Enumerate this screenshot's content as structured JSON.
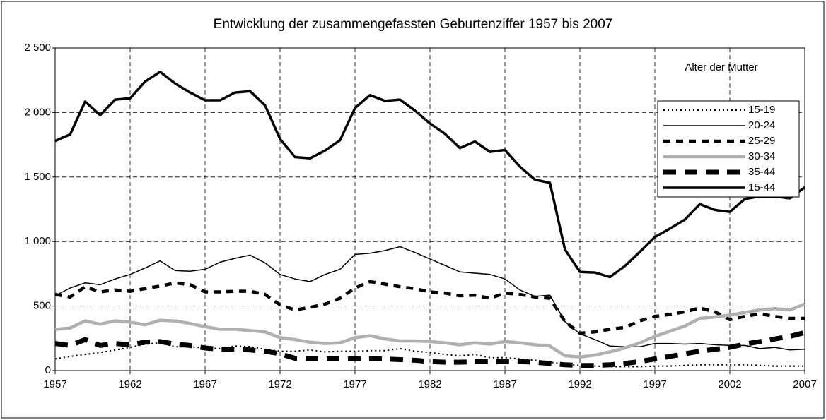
{
  "chart_data": {
    "type": "line",
    "title": "Entwicklung der zusammengefassten Geburtenziffer 1957 bis 2007",
    "legend_title": "Alter der Mutter",
    "legend": "right",
    "grid": true,
    "x": [
      1957,
      1958,
      1959,
      1960,
      1961,
      1962,
      1963,
      1964,
      1965,
      1966,
      1967,
      1968,
      1969,
      1970,
      1971,
      1972,
      1973,
      1974,
      1975,
      1976,
      1977,
      1978,
      1979,
      1980,
      1981,
      1982,
      1983,
      1984,
      1985,
      1986,
      1987,
      1988,
      1989,
      1990,
      1991,
      1992,
      1993,
      1994,
      1995,
      1996,
      1997,
      1998,
      1999,
      2000,
      2001,
      2002,
      2003,
      2004,
      2005,
      2006,
      2007
    ],
    "xlim": [
      1957,
      2007
    ],
    "xticks": [
      1957,
      1962,
      1967,
      1972,
      1977,
      1982,
      1987,
      1992,
      1997,
      2002,
      2007
    ],
    "ylim": [
      0,
      2500
    ],
    "yticks": [
      0,
      500,
      {
        "value": 1000,
        "label": "1 000"
      },
      {
        "value": 1500,
        "label": "1 500"
      },
      {
        "value": 2000,
        "label": "2 000"
      },
      {
        "value": 2500,
        "label": "2 500"
      }
    ],
    "series": [
      {
        "name": "15-19",
        "color": "#000000",
        "style": "dotted",
        "values": [
          90,
          110,
          125,
          140,
          160,
          180,
          205,
          215,
          185,
          185,
          175,
          170,
          190,
          185,
          165,
          150,
          150,
          160,
          145,
          150,
          150,
          155,
          155,
          170,
          150,
          140,
          125,
          115,
          125,
          100,
          100,
          90,
          80,
          65,
          50,
          40,
          35,
          30,
          30,
          30,
          35,
          35,
          40,
          45,
          45,
          45,
          45,
          40,
          35,
          35,
          35
        ]
      },
      {
        "name": "20-24",
        "color": "#000000",
        "style": "thin",
        "values": [
          580,
          640,
          680,
          665,
          710,
          745,
          795,
          850,
          775,
          770,
          785,
          840,
          870,
          895,
          835,
          745,
          710,
          690,
          745,
          785,
          900,
          910,
          930,
          960,
          915,
          865,
          815,
          765,
          755,
          745,
          710,
          625,
          575,
          585,
          380,
          285,
          240,
          190,
          185,
          185,
          210,
          210,
          205,
          210,
          200,
          195,
          195,
          170,
          180,
          160,
          165
        ]
      },
      {
        "name": "25-29",
        "color": "#000000",
        "style": "dashed",
        "values": [
          590,
          570,
          650,
          610,
          625,
          615,
          635,
          655,
          680,
          665,
          610,
          610,
          615,
          615,
          590,
          510,
          470,
          490,
          515,
          560,
          640,
          690,
          670,
          650,
          635,
          610,
          600,
          580,
          585,
          560,
          600,
          590,
          570,
          560,
          380,
          290,
          300,
          320,
          335,
          385,
          420,
          435,
          455,
          485,
          455,
          395,
          420,
          440,
          420,
          405,
          405
        ]
      },
      {
        "name": "30-34",
        "color": "#b0b0b0",
        "style": "gray",
        "values": [
          320,
          330,
          385,
          360,
          385,
          375,
          355,
          390,
          385,
          365,
          340,
          320,
          320,
          310,
          300,
          255,
          240,
          220,
          210,
          215,
          255,
          270,
          245,
          230,
          230,
          225,
          215,
          200,
          215,
          205,
          225,
          215,
          200,
          190,
          115,
          105,
          120,
          145,
          175,
          215,
          265,
          305,
          345,
          405,
          415,
          430,
          450,
          470,
          480,
          470,
          515
        ]
      },
      {
        "name": "35-44",
        "color": "#000000",
        "style": "long-dash",
        "values": [
          210,
          195,
          240,
          195,
          210,
          200,
          220,
          225,
          205,
          195,
          175,
          165,
          165,
          160,
          150,
          130,
          95,
          90,
          90,
          90,
          90,
          90,
          90,
          85,
          80,
          70,
          65,
          65,
          70,
          70,
          70,
          70,
          65,
          55,
          45,
          40,
          40,
          45,
          55,
          70,
          90,
          110,
          130,
          150,
          165,
          180,
          205,
          225,
          245,
          265,
          295
        ]
      },
      {
        "name": "15-44",
        "color": "#000000",
        "style": "thick",
        "values": [
          1780,
          1830,
          2085,
          1980,
          2100,
          2110,
          2240,
          2315,
          2225,
          2155,
          2095,
          2095,
          2155,
          2165,
          2055,
          1795,
          1655,
          1645,
          1705,
          1785,
          2035,
          2135,
          2090,
          2100,
          2015,
          1915,
          1835,
          1725,
          1775,
          1695,
          1710,
          1580,
          1480,
          1455,
          940,
          765,
          760,
          725,
          810,
          920,
          1035,
          1100,
          1170,
          1290,
          1245,
          1230,
          1330,
          1350,
          1350,
          1335,
          1420
        ]
      }
    ]
  }
}
